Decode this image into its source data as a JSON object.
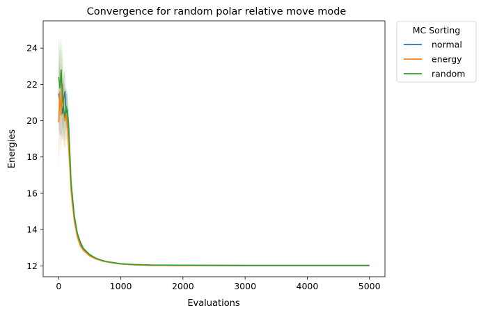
{
  "chart_data": {
    "type": "line",
    "title": "Convergence for random polar relative move mode",
    "xlabel": "Evaluations",
    "ylabel": "Energies",
    "xlim": [
      -250,
      5250
    ],
    "ylim": [
      11.4,
      25.5
    ],
    "xticks": [
      0,
      1000,
      2000,
      3000,
      4000,
      5000
    ],
    "yticks": [
      12,
      14,
      16,
      18,
      20,
      22,
      24
    ],
    "grid": false,
    "legend": {
      "title": "MC Sorting",
      "placement": "outside-top-right"
    },
    "series": [
      {
        "name": "normal",
        "color": "#1f77b4",
        "x": [
          0,
          20,
          40,
          60,
          80,
          100,
          120,
          140,
          160,
          180,
          200,
          250,
          300,
          350,
          400,
          500,
          600,
          700,
          800,
          1000,
          1200,
          1500,
          2000,
          3000,
          4000,
          5000
        ],
        "y": [
          21.5,
          21.0,
          20.8,
          20.4,
          21.2,
          21.6,
          20.4,
          20.6,
          19.3,
          17.8,
          16.3,
          14.6,
          13.7,
          13.2,
          12.9,
          12.6,
          12.4,
          12.28,
          12.2,
          12.1,
          12.06,
          12.03,
          12.02,
          12.01,
          12.01,
          12.01
        ],
        "spread": [
          2.0,
          1.8,
          1.6,
          1.5,
          1.4,
          1.2,
          1.0,
          0.9,
          0.8,
          0.6,
          0.4,
          0.25,
          0.15,
          0.1,
          0.08,
          0.06,
          0.05,
          0.04,
          0.03,
          0.03,
          0.03,
          0.02,
          0.02,
          0.02,
          0.02,
          0.02
        ]
      },
      {
        "name": "energy",
        "color": "#ff7f0e",
        "x": [
          0,
          20,
          40,
          60,
          80,
          100,
          120,
          140,
          160,
          180,
          200,
          250,
          300,
          350,
          400,
          500,
          600,
          700,
          800,
          1000,
          1200,
          1500,
          2000,
          3000,
          4000,
          5000
        ],
        "y": [
          19.9,
          21.6,
          20.3,
          22.0,
          20.5,
          20.0,
          20.4,
          19.7,
          18.6,
          17.4,
          16.1,
          14.5,
          13.6,
          13.1,
          12.85,
          12.55,
          12.38,
          12.27,
          12.2,
          12.1,
          12.06,
          12.03,
          12.02,
          12.02,
          12.02,
          12.02
        ],
        "spread": [
          2.5,
          2.3,
          2.1,
          2.0,
          1.8,
          1.6,
          1.3,
          1.1,
          0.9,
          0.7,
          0.5,
          0.3,
          0.18,
          0.12,
          0.09,
          0.07,
          0.05,
          0.04,
          0.03,
          0.03,
          0.03,
          0.02,
          0.02,
          0.02,
          0.02,
          0.02
        ]
      },
      {
        "name": "random",
        "color": "#2ca02c",
        "x": [
          0,
          20,
          40,
          60,
          80,
          100,
          120,
          140,
          160,
          180,
          200,
          250,
          300,
          350,
          400,
          500,
          600,
          700,
          800,
          1000,
          1200,
          1500,
          2000,
          3000,
          4000,
          5000
        ],
        "y": [
          22.4,
          21.8,
          22.8,
          21.3,
          20.6,
          20.2,
          20.8,
          20.5,
          19.8,
          18.2,
          16.6,
          14.8,
          13.8,
          13.3,
          12.95,
          12.62,
          12.42,
          12.3,
          12.22,
          12.12,
          12.08,
          12.05,
          12.04,
          12.03,
          12.03,
          12.03
        ],
        "spread": [
          2.2,
          2.0,
          1.8,
          1.7,
          1.5,
          1.3,
          1.1,
          1.0,
          0.8,
          0.6,
          0.4,
          0.25,
          0.15,
          0.1,
          0.08,
          0.06,
          0.05,
          0.04,
          0.03,
          0.03,
          0.03,
          0.02,
          0.02,
          0.02,
          0.02,
          0.02
        ]
      }
    ]
  }
}
